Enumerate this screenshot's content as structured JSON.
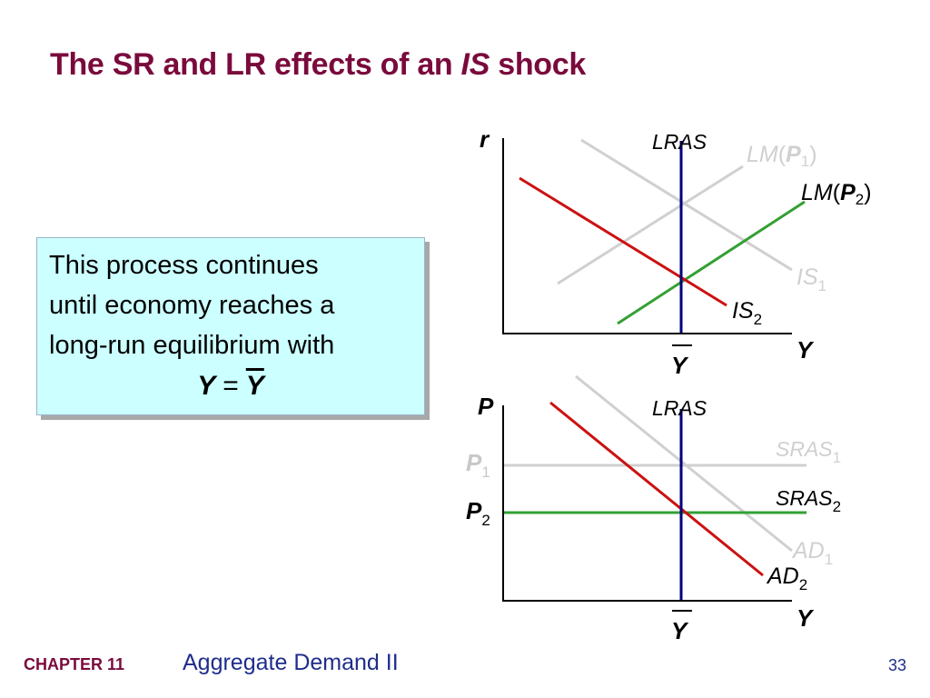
{
  "title": {
    "prefix": "The SR and LR effects of an ",
    "italic": "IS",
    "suffix": " shock"
  },
  "textbox": {
    "lines": [
      "This process continues",
      "until economy reaches a",
      "long-run equilibrium with"
    ],
    "equation": {
      "lhs": "Y",
      "op": "=",
      "rhs": "Y"
    }
  },
  "top_panel": {
    "y_axis_label": "r",
    "x_axis_label": "Y",
    "x_tick_label": "Y",
    "curves": {
      "lras": {
        "label": "LRAS",
        "color": "#00007f"
      },
      "lm1": {
        "main": "LM",
        "paren_open": "(",
        "sym": "P",
        "sub": "1",
        "paren_close": ")",
        "color": "#d0d0d0"
      },
      "lm2": {
        "main": "LM",
        "paren_open": "(",
        "sym": "P",
        "sub": "2",
        "paren_close": ")",
        "color": "#33a033"
      },
      "is1": {
        "main": "IS",
        "sub": "1",
        "color": "#d0d0d0"
      },
      "is2": {
        "main": "IS",
        "sub": "2",
        "color": "#cc1111"
      }
    }
  },
  "bottom_panel": {
    "y_axis_label": "P",
    "x_axis_label": "Y",
    "x_tick_label": "Y",
    "y_ticks": [
      {
        "main": "P",
        "sub": "1",
        "color": "#c8c8c8"
      },
      {
        "main": "P",
        "sub": "2",
        "color": "#000000"
      }
    ],
    "curves": {
      "lras": {
        "label": "LRAS",
        "color": "#00007f"
      },
      "sras1": {
        "main": "SRAS",
        "sub": "1",
        "color": "#d0d0d0"
      },
      "sras2": {
        "main": "SRAS",
        "sub": "2",
        "color": "#33a033"
      },
      "ad1": {
        "main": "AD",
        "sub": "1",
        "color": "#d0d0d0"
      },
      "ad2": {
        "main": "AD",
        "sub": "2",
        "color": "#cc1111"
      }
    }
  },
  "footer": {
    "chapter": "CHAPTER 11",
    "topic": "Aggregate Demand II",
    "page": "33"
  }
}
